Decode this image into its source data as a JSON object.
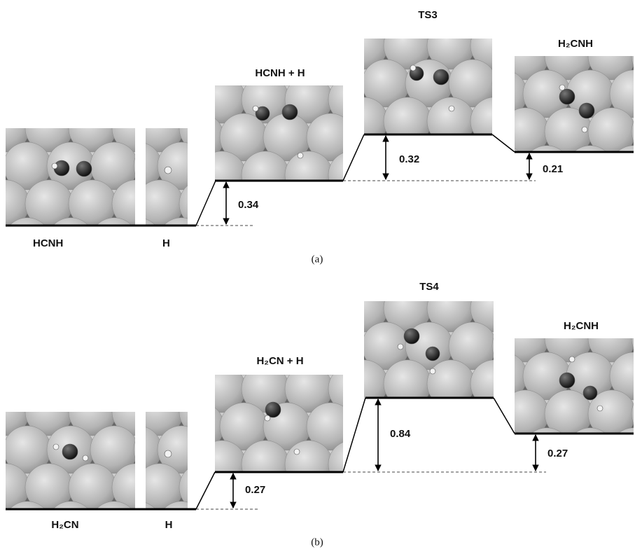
{
  "panels": [
    {
      "caption": "(a)",
      "states": [
        {
          "label": "HCNH"
        },
        {
          "label": "H"
        },
        {
          "label": "HCNH + H"
        },
        {
          "label": "TS3"
        },
        {
          "label": "H₂CNH"
        }
      ],
      "energies": [
        0.34,
        0.32,
        0.21
      ]
    },
    {
      "caption": "(b)",
      "states": [
        {
          "label": "H₂CN"
        },
        {
          "label": "H"
        },
        {
          "label": "H₂CN + H"
        },
        {
          "label": "TS4"
        },
        {
          "label": "H₂CNH"
        }
      ],
      "energies": [
        0.27,
        0.84,
        0.27
      ]
    }
  ]
}
